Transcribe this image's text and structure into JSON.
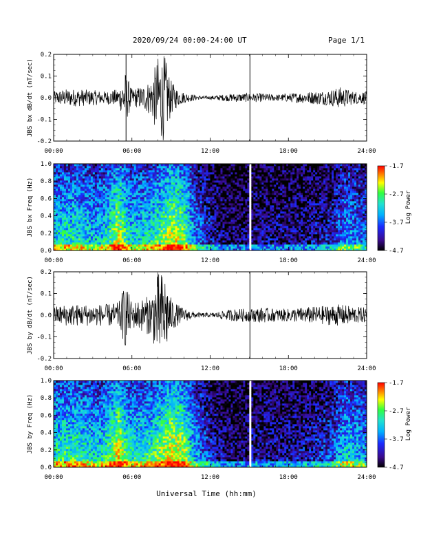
{
  "header": {
    "title": "2020/09/24  00:00-24:00 UT",
    "page": "Page 1/1"
  },
  "x_axis_title": "Universal Time (hh:mm)",
  "colors": {
    "trace": "#000000",
    "spectrogram_background": "#2a0a5e",
    "colormap": [
      "#000000",
      "#3a0a8c",
      "#1a2aff",
      "#00b0ff",
      "#20e0d0",
      "#30ff40",
      "#ffff00",
      "#ff8000",
      "#ff0000"
    ]
  },
  "chart_data": [
    {
      "type": "line",
      "title": "",
      "ylabel": "JBS bx dB/dt (nT/sec)",
      "xlabel": "",
      "xticks": [
        "00:00",
        "06:00",
        "12:00",
        "18:00",
        "24:00"
      ],
      "yticks": [
        "-0.2",
        "-0.1",
        "0.0",
        "0.1",
        "0.2"
      ],
      "xlim": [
        0,
        24
      ],
      "ylim": [
        -0.2,
        0.2
      ],
      "series": [
        {
          "x": [
            0,
            1,
            2,
            3,
            4,
            5,
            5.5,
            6,
            6.5,
            7,
            7.5,
            8,
            8.5,
            9,
            9.5,
            10,
            11,
            12,
            13,
            14,
            15,
            16,
            17,
            18,
            19,
            20,
            21,
            22,
            23,
            24
          ],
          "amplitude": [
            0.03,
            0.04,
            0.04,
            0.035,
            0.03,
            0.04,
            0.12,
            0.04,
            0.05,
            0.06,
            0.09,
            0.19,
            0.2,
            0.08,
            0.04,
            0.025,
            0.01,
            0.008,
            0.015,
            0.02,
            0.02,
            0.02,
            0.015,
            0.02,
            0.025,
            0.03,
            0.035,
            0.05,
            0.03,
            0.03
          ]
        }
      ],
      "spikes": [
        5.55,
        15.05
      ]
    },
    {
      "type": "heatmap",
      "title": "",
      "ylabel": "JBS bx Freq (Hz)",
      "xlabel": "",
      "xticks": [
        "00:00",
        "06:00",
        "12:00",
        "18:00",
        "24:00"
      ],
      "yticks": [
        "0.0",
        "0.2",
        "0.4",
        "0.6",
        "0.8",
        "1.0"
      ],
      "xlim": [
        0,
        24
      ],
      "ylim": [
        0,
        1
      ],
      "colorbar": {
        "label": "Log Power",
        "ticks": [
          "-1.7",
          "-2.7",
          "-3.7",
          "-4.7"
        ],
        "range": [
          -4.7,
          -1.7
        ]
      },
      "activity": [
        0.55,
        0.6,
        0.6,
        0.55,
        0.5,
        0.6,
        0.85,
        0.55,
        0.55,
        0.6,
        0.7,
        0.85,
        0.75,
        0.45,
        0.3,
        0.2,
        0.15,
        0.12,
        0.15,
        0.18,
        0.18,
        0.18,
        0.16,
        0.18,
        0.2,
        0.22,
        0.3,
        0.45,
        0.4,
        0.35
      ]
    },
    {
      "type": "line",
      "title": "",
      "ylabel": "JBS by dB/dt (nT/sec)",
      "xlabel": "",
      "xticks": [
        "00:00",
        "06:00",
        "12:00",
        "18:00",
        "24:00"
      ],
      "yticks": [
        "-0.2",
        "-0.1",
        "0.0",
        "0.1",
        "0.2"
      ],
      "xlim": [
        0,
        24
      ],
      "ylim": [
        -0.2,
        0.2
      ],
      "series": [
        {
          "x": [
            0,
            1,
            2,
            3,
            4,
            5,
            5.5,
            6,
            6.5,
            7,
            7.5,
            8,
            8.5,
            9,
            9.5,
            10,
            11,
            12,
            13,
            14,
            15,
            16,
            17,
            18,
            19,
            20,
            21,
            22,
            23,
            24
          ],
          "amplitude": [
            0.04,
            0.05,
            0.05,
            0.05,
            0.05,
            0.06,
            0.15,
            0.06,
            0.07,
            0.08,
            0.1,
            0.2,
            0.2,
            0.08,
            0.05,
            0.03,
            0.012,
            0.01,
            0.02,
            0.03,
            0.03,
            0.035,
            0.03,
            0.03,
            0.035,
            0.04,
            0.045,
            0.05,
            0.04,
            0.035
          ]
        }
      ],
      "spikes": [
        15.05
      ]
    },
    {
      "type": "heatmap",
      "title": "",
      "ylabel": "JBS by Freq (Hz)",
      "xlabel": "",
      "xticks": [
        "00:00",
        "06:00",
        "12:00",
        "18:00",
        "24:00"
      ],
      "yticks": [
        "0.0",
        "0.2",
        "0.4",
        "0.6",
        "0.8",
        "1.0"
      ],
      "xlim": [
        0,
        24
      ],
      "ylim": [
        0,
        1
      ],
      "colorbar": {
        "label": "Log Power",
        "ticks": [
          "-1.7",
          "-2.7",
          "-3.7",
          "-4.7"
        ],
        "range": [
          -4.7,
          -1.7
        ]
      },
      "activity": [
        0.6,
        0.65,
        0.65,
        0.6,
        0.55,
        0.65,
        0.9,
        0.6,
        0.6,
        0.65,
        0.75,
        0.9,
        0.8,
        0.5,
        0.35,
        0.22,
        0.17,
        0.14,
        0.17,
        0.2,
        0.2,
        0.2,
        0.2,
        0.22,
        0.24,
        0.28,
        0.35,
        0.55,
        0.5,
        0.45
      ]
    }
  ]
}
